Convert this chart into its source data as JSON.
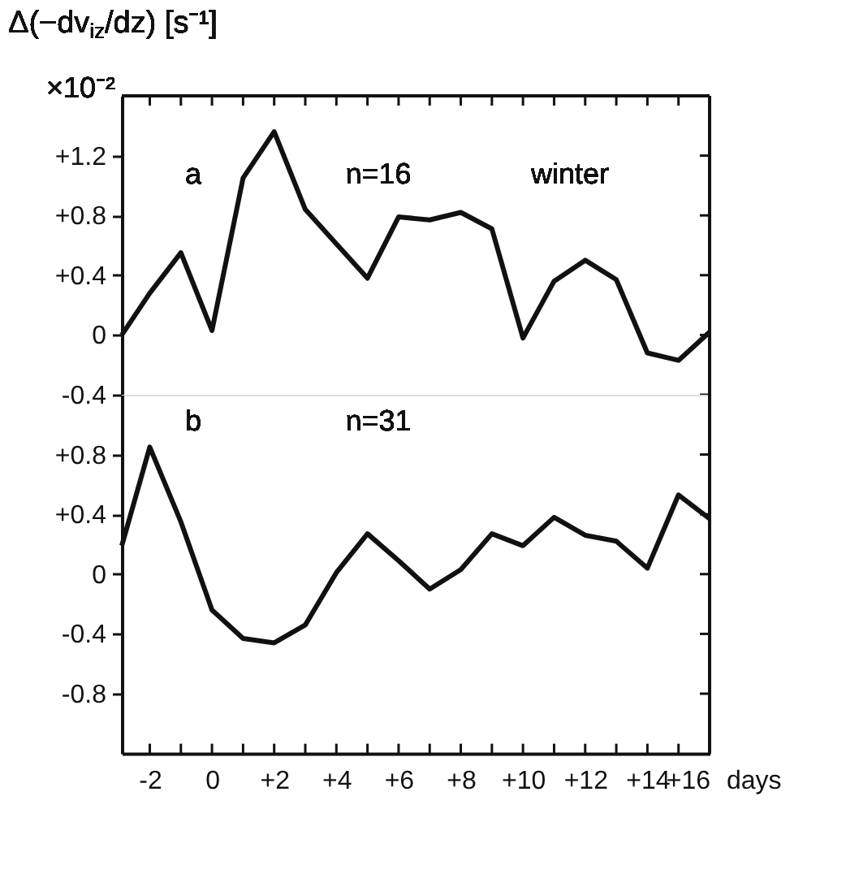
{
  "chart_data": [
    {
      "type": "line",
      "ylabel": "Δ(−dv$_{iz}$/dz) [s⁻¹]",
      "annotations": [
        "×10⁻²",
        "a",
        "n=16",
        "winter"
      ],
      "x": [
        -2.9,
        -2,
        -1,
        0,
        1,
        2,
        3,
        4,
        5,
        6,
        7,
        8,
        9,
        10,
        11,
        12,
        13,
        14,
        15,
        16
      ],
      "series": [
        {
          "color": "#111111",
          "values": [
            0.0,
            0.28,
            0.55,
            0.03,
            1.05,
            1.36,
            0.84,
            0.61,
            0.38,
            0.79,
            0.77,
            0.82,
            0.71,
            -0.02,
            0.36,
            0.5,
            0.37,
            -0.12,
            -0.17,
            0.02
          ]
        }
      ],
      "xlim": [
        -2.9,
        16
      ],
      "ylim": [
        -0.4,
        1.6
      ],
      "xticks": [
        {
          "value": -2,
          "label": null
        },
        {
          "value": -1,
          "label": null
        },
        {
          "value": 0,
          "label": null
        },
        {
          "value": 1,
          "label": null
        },
        {
          "value": 2,
          "label": null
        },
        {
          "value": 3,
          "label": null
        },
        {
          "value": 4,
          "label": null
        },
        {
          "value": 5,
          "label": null
        },
        {
          "value": 6,
          "label": null
        },
        {
          "value": 7,
          "label": null
        },
        {
          "value": 8,
          "label": null
        },
        {
          "value": 9,
          "label": null
        },
        {
          "value": 10,
          "label": null
        },
        {
          "value": 11,
          "label": null
        },
        {
          "value": 12,
          "label": null
        },
        {
          "value": 13,
          "label": null
        },
        {
          "value": 14,
          "label": null
        },
        {
          "value": 15,
          "label": null
        },
        {
          "value": 16,
          "label": null
        }
      ],
      "yticks": [
        -0.4,
        0,
        {
          "value": 0.4,
          "label": "+0.4"
        },
        {
          "value": 0.8,
          "label": "+0.8"
        },
        {
          "value": 1.2,
          "label": "+1.2"
        }
      ],
      "tick_labels": "y"
    },
    {
      "type": "line",
      "xlabel": "days",
      "annotations": [
        "b",
        "n=31"
      ],
      "x": [
        -2.9,
        -2,
        -1,
        0,
        1,
        2,
        3,
        4,
        5,
        6,
        7,
        8,
        9,
        10,
        11,
        12,
        13,
        14,
        15,
        16
      ],
      "series": [
        {
          "color": "#111111",
          "values": [
            0.19,
            0.85,
            0.35,
            -0.24,
            -0.43,
            -0.46,
            -0.34,
            0.01,
            0.27,
            0.09,
            -0.1,
            0.03,
            0.27,
            0.19,
            0.38,
            0.26,
            0.22,
            0.04,
            0.53,
            0.37
          ]
        }
      ],
      "xlim": [
        -2.9,
        16
      ],
      "ylim": [
        -1.2,
        1.2
      ],
      "xticks": [
        -2,
        {
          "value": -1,
          "label": null
        },
        0,
        {
          "value": 1,
          "label": null
        },
        {
          "value": 2,
          "label": "+2"
        },
        {
          "value": 3,
          "label": null
        },
        {
          "value": 4,
          "label": "+4"
        },
        {
          "value": 5,
          "label": null
        },
        {
          "value": 6,
          "label": "+6"
        },
        {
          "value": 7,
          "label": null
        },
        {
          "value": 8,
          "label": "+8"
        },
        {
          "value": 9,
          "label": null
        },
        {
          "value": 10,
          "label": "+10"
        },
        {
          "value": 11,
          "label": null
        },
        {
          "value": 12,
          "label": "+12"
        },
        {
          "value": 13,
          "label": null
        },
        {
          "value": 14,
          "label": "+14"
        },
        {
          "value": 15,
          "label": null
        },
        {
          "value": 16,
          "label": "+16"
        }
      ],
      "yticks": [
        -0.8,
        -0.4,
        0,
        {
          "value": 0.4,
          "label": "+0.4"
        },
        {
          "value": 0.8,
          "label": "+0.8"
        }
      ]
    }
  ]
}
